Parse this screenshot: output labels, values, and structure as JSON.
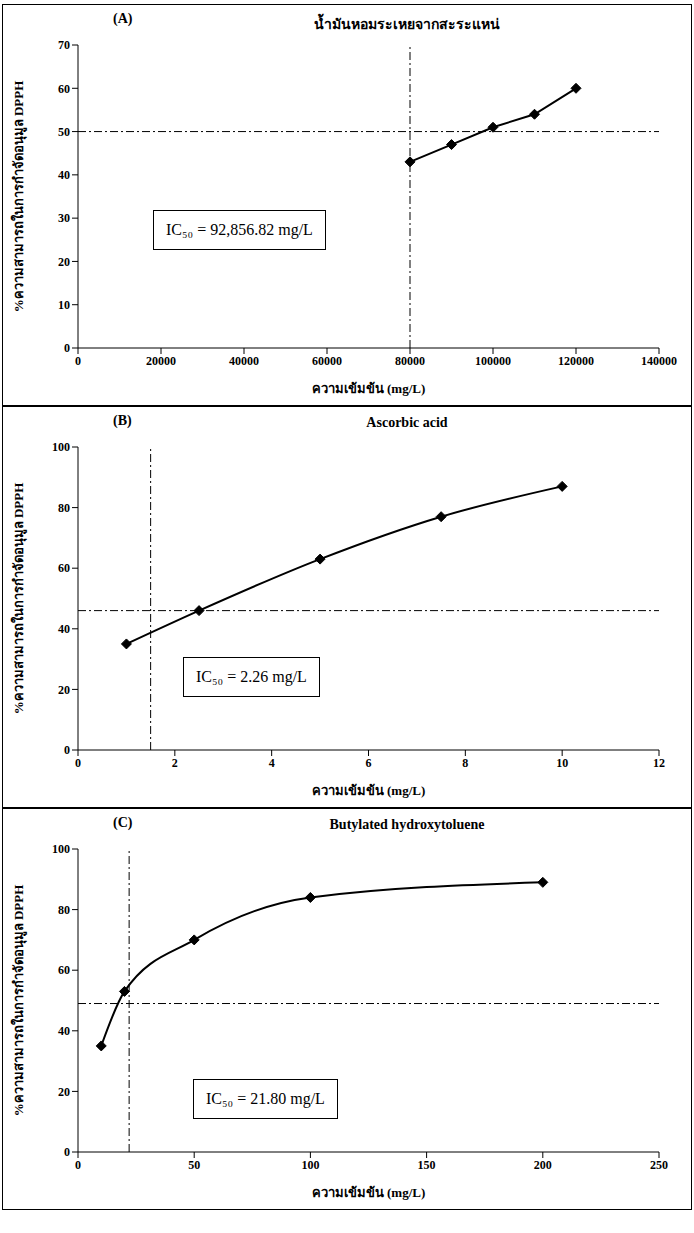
{
  "chart_data": [
    {
      "type": "line",
      "panel_label": "(A)",
      "title": "น้ำมันหอมระเหยจากสะระแหน่",
      "y_label": "%ความสามารถในการกำจัดอนุมูล DPPH",
      "x_label": "ความเข้มข้น (mg/L)",
      "annotation": "IC₅₀ = 92,856.82 mg/L",
      "x": [
        80000,
        90000,
        100000,
        110000,
        120000
      ],
      "values": [
        43,
        47,
        51,
        54,
        60
      ],
      "color": "#000000",
      "marker": "diamond",
      "line_style": "straight",
      "xlim": [
        0,
        140000
      ],
      "xticks": [
        0,
        20000,
        40000,
        60000,
        80000,
        100000,
        120000,
        140000
      ],
      "ylim": [
        0,
        70
      ],
      "yticks": [
        0,
        10,
        20,
        30,
        40,
        50,
        60,
        70
      ],
      "reference_x": 80000,
      "reference_y": 50
    },
    {
      "type": "line",
      "panel_label": "(B)",
      "title": "Ascorbic acid",
      "y_label": "%ความสามารถในการกำจัดอนุมูล DPPH",
      "x_label": "ความเข้มข้น (mg/L)",
      "annotation": "IC₅₀ = 2.26 mg/L",
      "x": [
        1,
        2.5,
        5,
        7.5,
        10
      ],
      "values": [
        35,
        46,
        63,
        77,
        87
      ],
      "color": "#000000",
      "marker": "diamond",
      "line_style": "smooth",
      "xlim": [
        0,
        12
      ],
      "xticks": [
        0,
        2,
        4,
        6,
        8,
        10,
        12
      ],
      "ylim": [
        0,
        100
      ],
      "yticks": [
        0,
        20,
        40,
        60,
        80,
        100
      ],
      "reference_x": 1.5,
      "reference_y": 46
    },
    {
      "type": "line",
      "panel_label": "(C)",
      "title": "Butylated hydroxytoluene",
      "y_label": "%ความสามารถในการกำจัดอนุมูล DPPH",
      "x_label": "ความเข้มข้น (mg/L)",
      "annotation": "IC₅₀ = 21.80 mg/L",
      "x": [
        10,
        20,
        50,
        100,
        200
      ],
      "values": [
        35,
        53,
        70,
        84,
        89
      ],
      "color": "#000000",
      "marker": "diamond",
      "line_style": "smooth",
      "xlim": [
        0,
        250
      ],
      "xticks": [
        0,
        50,
        100,
        150,
        200,
        250
      ],
      "ylim": [
        0,
        100
      ],
      "yticks": [
        0,
        20,
        40,
        60,
        80,
        100
      ],
      "reference_x": 22,
      "reference_y": 49
    }
  ]
}
